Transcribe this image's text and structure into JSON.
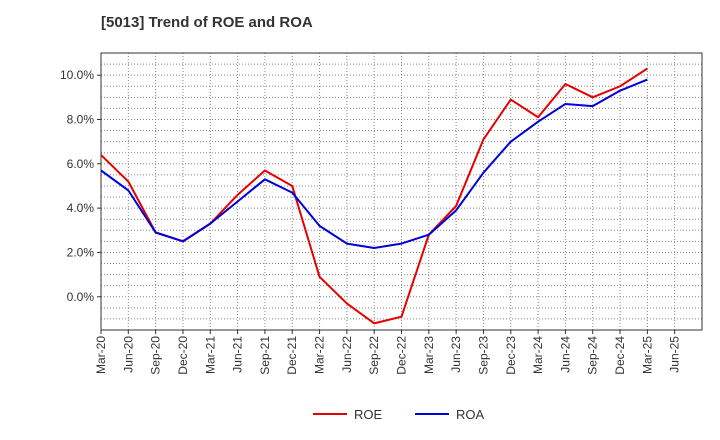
{
  "chart_data": {
    "type": "line",
    "title": "[5013]  Trend of ROE and ROA",
    "xlabel": "",
    "ylabel": "",
    "categories": [
      "Mar-20",
      "Jun-20",
      "Sep-20",
      "Dec-20",
      "Mar-21",
      "Jun-21",
      "Sep-21",
      "Dec-21",
      "Mar-22",
      "Jun-22",
      "Sep-22",
      "Dec-22",
      "Mar-23",
      "Jun-23",
      "Sep-23",
      "Dec-23",
      "Mar-24",
      "Jun-24",
      "Sep-24",
      "Dec-24",
      "Mar-25",
      "Jun-25"
    ],
    "ylim": [
      -1.5,
      11.0
    ],
    "yticks": [
      0,
      2,
      4,
      6,
      8,
      10
    ],
    "ytick_labels": [
      "0.0%",
      "2.0%",
      "4.0%",
      "6.0%",
      "8.0%",
      "10.0%"
    ],
    "grid": true,
    "legend_position": "bottom",
    "series": [
      {
        "name": "ROE",
        "color": "#e60000",
        "values": [
          6.4,
          5.2,
          2.9,
          2.5,
          3.3,
          4.6,
          5.7,
          5.0,
          0.9,
          -0.3,
          -1.2,
          -0.9,
          2.8,
          4.1,
          7.1,
          8.9,
          8.1,
          9.6,
          9.0,
          9.5,
          10.3,
          null
        ]
      },
      {
        "name": "ROA",
        "color": "#0000d9",
        "values": [
          5.7,
          4.8,
          2.9,
          2.5,
          3.3,
          4.3,
          5.3,
          4.7,
          3.2,
          2.4,
          2.2,
          2.4,
          2.8,
          3.9,
          5.6,
          7.0,
          7.9,
          8.7,
          8.6,
          9.3,
          9.8,
          null
        ]
      }
    ]
  }
}
